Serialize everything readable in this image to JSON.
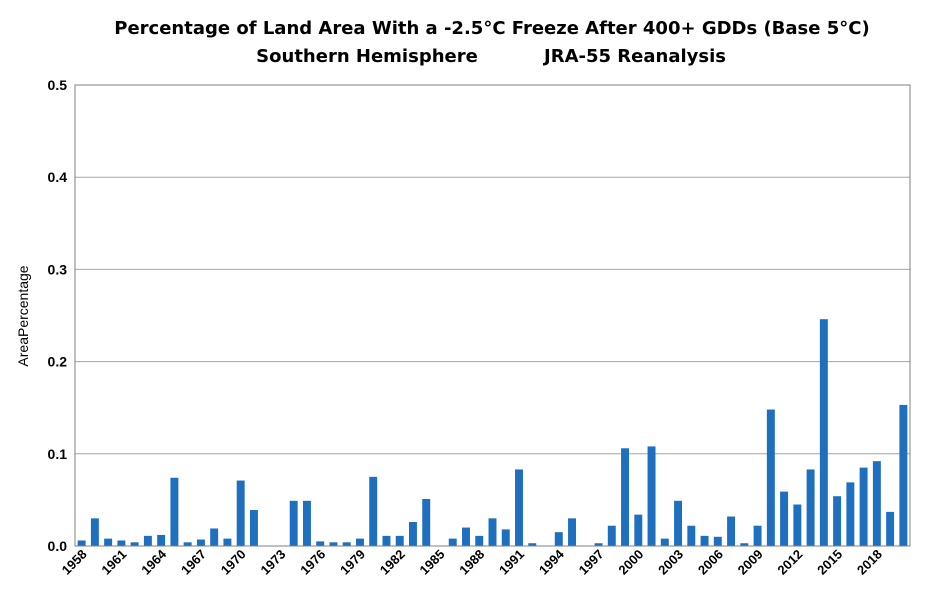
{
  "chart_data": {
    "type": "bar",
    "title": "Percentage of Land Area With a -2.5°C Freeze After 400+ GDDs (Base 5°C)",
    "subtitle_left": "Southern Hemisphere",
    "subtitle_right": "JRA-55 Reanalysis",
    "xlabel": "",
    "ylabel": "AreaPercentage",
    "ylim": [
      0,
      0.5
    ],
    "yticks": [
      "0.0",
      "0.1",
      "0.2",
      "0.3",
      "0.4",
      "0.5"
    ],
    "grid": true,
    "bar_color": "#1f6fbf",
    "x_tick_labels": [
      "1958",
      "1961",
      "1964",
      "1967",
      "1970",
      "1973",
      "1976",
      "1979",
      "1982",
      "1985",
      "1988",
      "1991",
      "1994",
      "1997",
      "2000",
      "2003",
      "2006",
      "2009",
      "2012",
      "2015",
      "2018"
    ],
    "categories": [
      1958,
      1959,
      1960,
      1961,
      1962,
      1963,
      1964,
      1965,
      1966,
      1967,
      1968,
      1969,
      1970,
      1971,
      1972,
      1973,
      1974,
      1975,
      1976,
      1977,
      1978,
      1979,
      1980,
      1981,
      1982,
      1983,
      1984,
      1985,
      1986,
      1987,
      1988,
      1989,
      1990,
      1991,
      1992,
      1993,
      1994,
      1995,
      1996,
      1997,
      1998,
      1999,
      2000,
      2001,
      2002,
      2003,
      2004,
      2005,
      2006,
      2007,
      2008,
      2009,
      2010,
      2011,
      2012,
      2013,
      2014,
      2015,
      2016,
      2017,
      2018,
      2019,
      2020
    ],
    "values": [
      0.006,
      0.03,
      0.008,
      0.006,
      0.004,
      0.011,
      0.012,
      0.074,
      0.004,
      0.007,
      0.019,
      0.008,
      0.071,
      0.039,
      0.0,
      0.0,
      0.049,
      0.049,
      0.005,
      0.004,
      0.004,
      0.008,
      0.075,
      0.011,
      0.011,
      0.026,
      0.051,
      0.0,
      0.008,
      0.02,
      0.011,
      0.03,
      0.018,
      0.083,
      0.003,
      0.0,
      0.015,
      0.03,
      0.0,
      0.003,
      0.022,
      0.106,
      0.034,
      0.108,
      0.008,
      0.049,
      0.022,
      0.011,
      0.01,
      0.032,
      0.003,
      0.022,
      0.148,
      0.059,
      0.045,
      0.083,
      0.246,
      0.054,
      0.069,
      0.085,
      0.092,
      0.037,
      0.153
    ]
  }
}
